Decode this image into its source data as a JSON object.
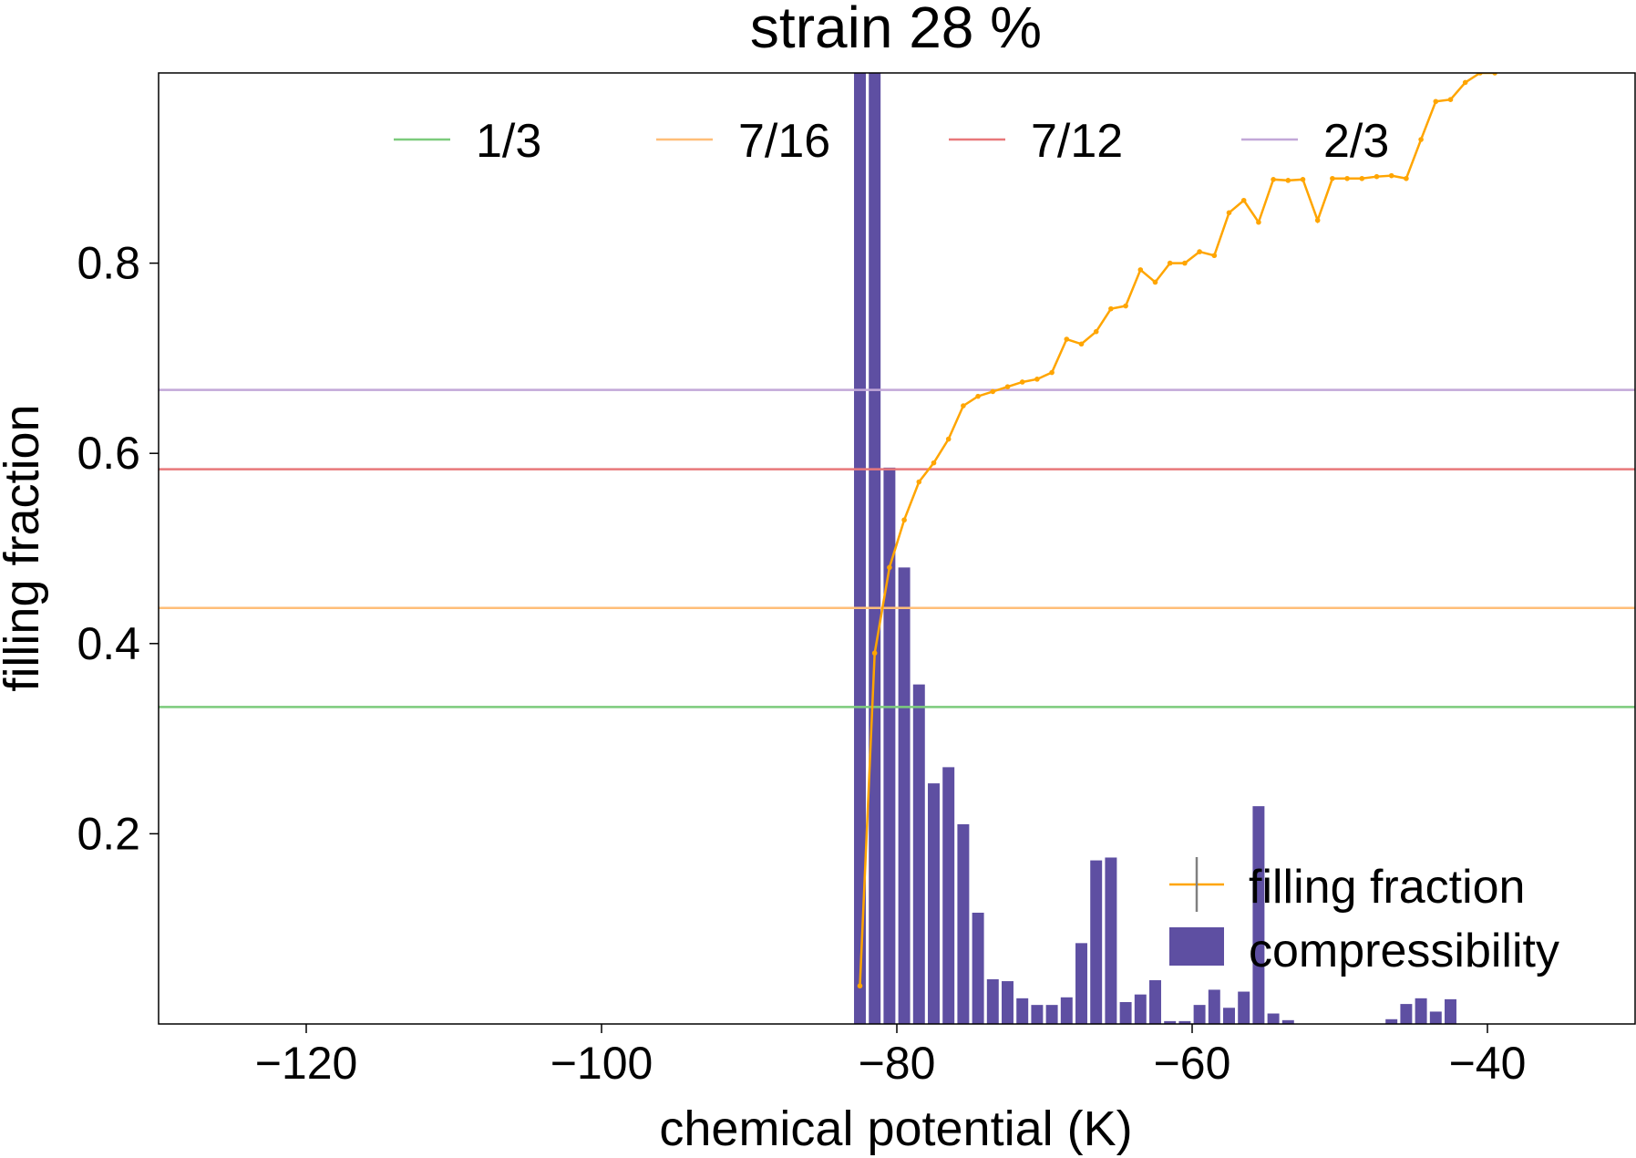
{
  "chart_data": {
    "type": "line",
    "title": "strain 28 %",
    "xlabel": "chemical potential (K)",
    "ylabel": "filling fraction",
    "xlim": [
      -130,
      -30
    ],
    "ylim": [
      0,
      1.0
    ],
    "xticks": [
      -120,
      -100,
      -80,
      -60,
      -40
    ],
    "xtick_labels": [
      "−120",
      "−100",
      "−80",
      "−60",
      "−40"
    ],
    "yticks": [
      0.2,
      0.4,
      0.6,
      0.8
    ],
    "ytick_labels": [
      "0.2",
      "0.4",
      "0.6",
      "0.8"
    ],
    "grid": false,
    "reference_lines": [
      {
        "name": "1/3",
        "y": 0.3333,
        "color": "#7ccb7c"
      },
      {
        "name": "7/16",
        "y": 0.4375,
        "color": "#ffbe78"
      },
      {
        "name": "7/12",
        "y": 0.5833,
        "color": "#e8787a"
      },
      {
        "name": "2/3",
        "y": 0.6667,
        "color": "#c2a8d8"
      }
    ],
    "reference_legend_placement": "top",
    "series": [
      {
        "name": "filling fraction",
        "type": "line",
        "color": "#ffa500",
        "x": [
          -82.5,
          -81.5,
          -80.5,
          -79.5,
          -78.5,
          -77.5,
          -76.5,
          -75.5,
          -74.5,
          -73.5,
          -72.5,
          -71.5,
          -70.5,
          -69.5,
          -68.5,
          -67.5,
          -66.5,
          -65.5,
          -64.5,
          -63.5,
          -62.5,
          -61.5,
          -60.5,
          -59.5,
          -58.5,
          -57.5,
          -56.5,
          -55.5,
          -54.5,
          -53.5,
          -52.5,
          -51.5,
          -50.5,
          -49.5,
          -48.5,
          -47.5,
          -46.5,
          -45.5,
          -44.5,
          -43.5,
          -42.5,
          -41.5,
          -40.5,
          -39.5
        ],
        "values": [
          0.04,
          0.39,
          0.48,
          0.53,
          0.57,
          0.59,
          0.615,
          0.65,
          0.66,
          0.665,
          0.67,
          0.675,
          0.678,
          0.685,
          0.72,
          0.715,
          0.728,
          0.752,
          0.755,
          0.793,
          0.78,
          0.8,
          0.8,
          0.812,
          0.808,
          0.853,
          0.866,
          0.843,
          0.888,
          0.887,
          0.888,
          0.845,
          0.889,
          0.889,
          0.889,
          0.891,
          0.892,
          0.889,
          0.93,
          0.97,
          0.972,
          0.99,
          1.0,
          1.0
        ]
      },
      {
        "name": "compressibility",
        "type": "bar",
        "color": "#5e4fa2",
        "x": [
          -82.5,
          -81.5,
          -80.5,
          -79.5,
          -78.5,
          -77.5,
          -76.5,
          -75.5,
          -74.5,
          -73.5,
          -72.5,
          -71.5,
          -70.5,
          -69.5,
          -68.5,
          -67.5,
          -66.5,
          -65.5,
          -64.5,
          -63.5,
          -62.5,
          -61.5,
          -60.5,
          -59.5,
          -58.5,
          -57.5,
          -56.5,
          -55.5,
          -54.5,
          -53.5,
          -46.5,
          -45.5,
          -44.5,
          -43.5,
          -42.5
        ],
        "values": [
          1.0,
          1.0,
          0.585,
          0.48,
          0.357,
          0.253,
          0.27,
          0.21,
          0.117,
          0.047,
          0.045,
          0.027,
          0.02,
          0.02,
          0.028,
          0.085,
          0.172,
          0.175,
          0.023,
          0.031,
          0.046,
          0.003,
          0.003,
          0.02,
          0.036,
          0.017,
          0.034,
          0.229,
          0.011,
          0.004,
          0.005,
          0.021,
          0.027,
          0.013,
          0.026
        ]
      }
    ],
    "series_legend_placement": "lower-right"
  }
}
